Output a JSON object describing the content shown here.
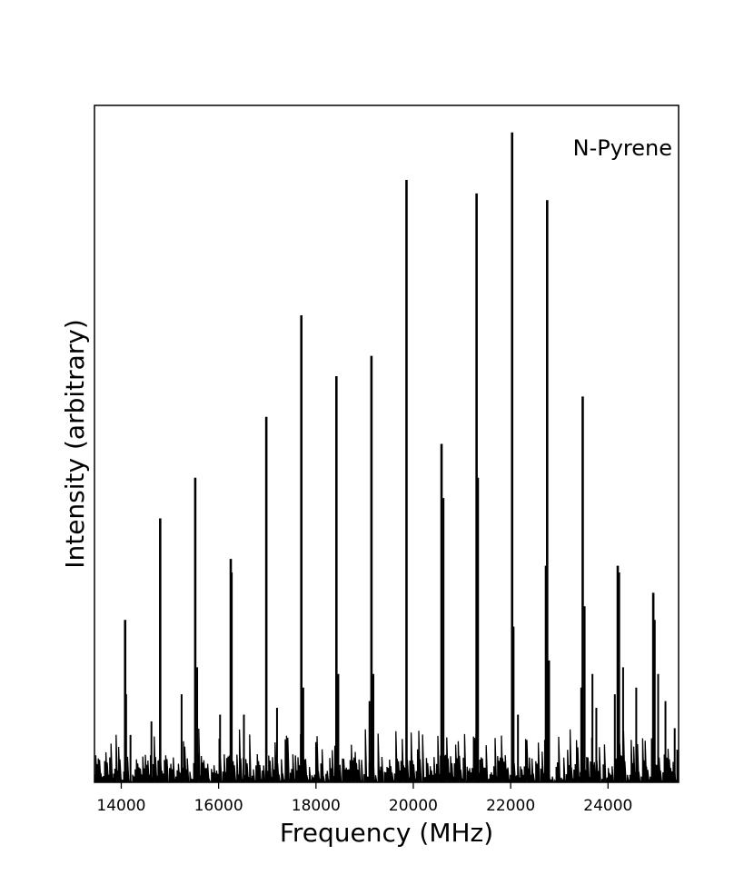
{
  "chart_data": {
    "type": "line",
    "title": "",
    "xlabel": "Frequency (MHz)",
    "ylabel": "Intensity (arbitrary)",
    "annotation": "N-Pyrene",
    "xlim": [
      13450,
      25450
    ],
    "ylim": [
      0,
      100
    ],
    "xticks": [
      14000,
      16000,
      18000,
      20000,
      22000,
      24000
    ],
    "xtick_labels": [
      "14000",
      "16000",
      "18000",
      "20000",
      "22000",
      "24000"
    ],
    "yticks_shown": false,
    "grid": false,
    "legend": "none",
    "line_color": "#000000",
    "noise_floor": 4,
    "noise_max": 8,
    "series": [
      {
        "name": "",
        "peaks": [
          {
            "x": 14080,
            "y": 24
          },
          {
            "x": 14800,
            "y": 39
          },
          {
            "x": 15520,
            "y": 45
          },
          {
            "x": 16250,
            "y": 33
          },
          {
            "x": 16980,
            "y": 54
          },
          {
            "x": 17700,
            "y": 69
          },
          {
            "x": 18420,
            "y": 60
          },
          {
            "x": 19140,
            "y": 63
          },
          {
            "x": 19860,
            "y": 89
          },
          {
            "x": 20580,
            "y": 50
          },
          {
            "x": 21300,
            "y": 87
          },
          {
            "x": 22030,
            "y": 96
          },
          {
            "x": 22750,
            "y": 86
          },
          {
            "x": 23480,
            "y": 57
          },
          {
            "x": 24200,
            "y": 32
          },
          {
            "x": 24930,
            "y": 28
          }
        ],
        "minor_peaks": [
          {
            "x": 14100,
            "y": 13
          },
          {
            "x": 14190,
            "y": 7
          },
          {
            "x": 14620,
            "y": 9
          },
          {
            "x": 15240,
            "y": 13
          },
          {
            "x": 15560,
            "y": 17
          },
          {
            "x": 16030,
            "y": 10
          },
          {
            "x": 16270,
            "y": 31
          },
          {
            "x": 16520,
            "y": 10
          },
          {
            "x": 17200,
            "y": 11
          },
          {
            "x": 17740,
            "y": 14
          },
          {
            "x": 18460,
            "y": 16
          },
          {
            "x": 19100,
            "y": 12
          },
          {
            "x": 19180,
            "y": 16
          },
          {
            "x": 20620,
            "y": 42
          },
          {
            "x": 21330,
            "y": 45
          },
          {
            "x": 22060,
            "y": 23
          },
          {
            "x": 22150,
            "y": 10
          },
          {
            "x": 22720,
            "y": 32
          },
          {
            "x": 22790,
            "y": 18
          },
          {
            "x": 23450,
            "y": 14
          },
          {
            "x": 23520,
            "y": 26
          },
          {
            "x": 23680,
            "y": 16
          },
          {
            "x": 23760,
            "y": 11
          },
          {
            "x": 24140,
            "y": 13
          },
          {
            "x": 24230,
            "y": 31
          },
          {
            "x": 24310,
            "y": 17
          },
          {
            "x": 24580,
            "y": 14
          },
          {
            "x": 24960,
            "y": 24
          },
          {
            "x": 25030,
            "y": 16
          },
          {
            "x": 25180,
            "y": 12
          },
          {
            "x": 25370,
            "y": 8
          }
        ]
      }
    ]
  }
}
